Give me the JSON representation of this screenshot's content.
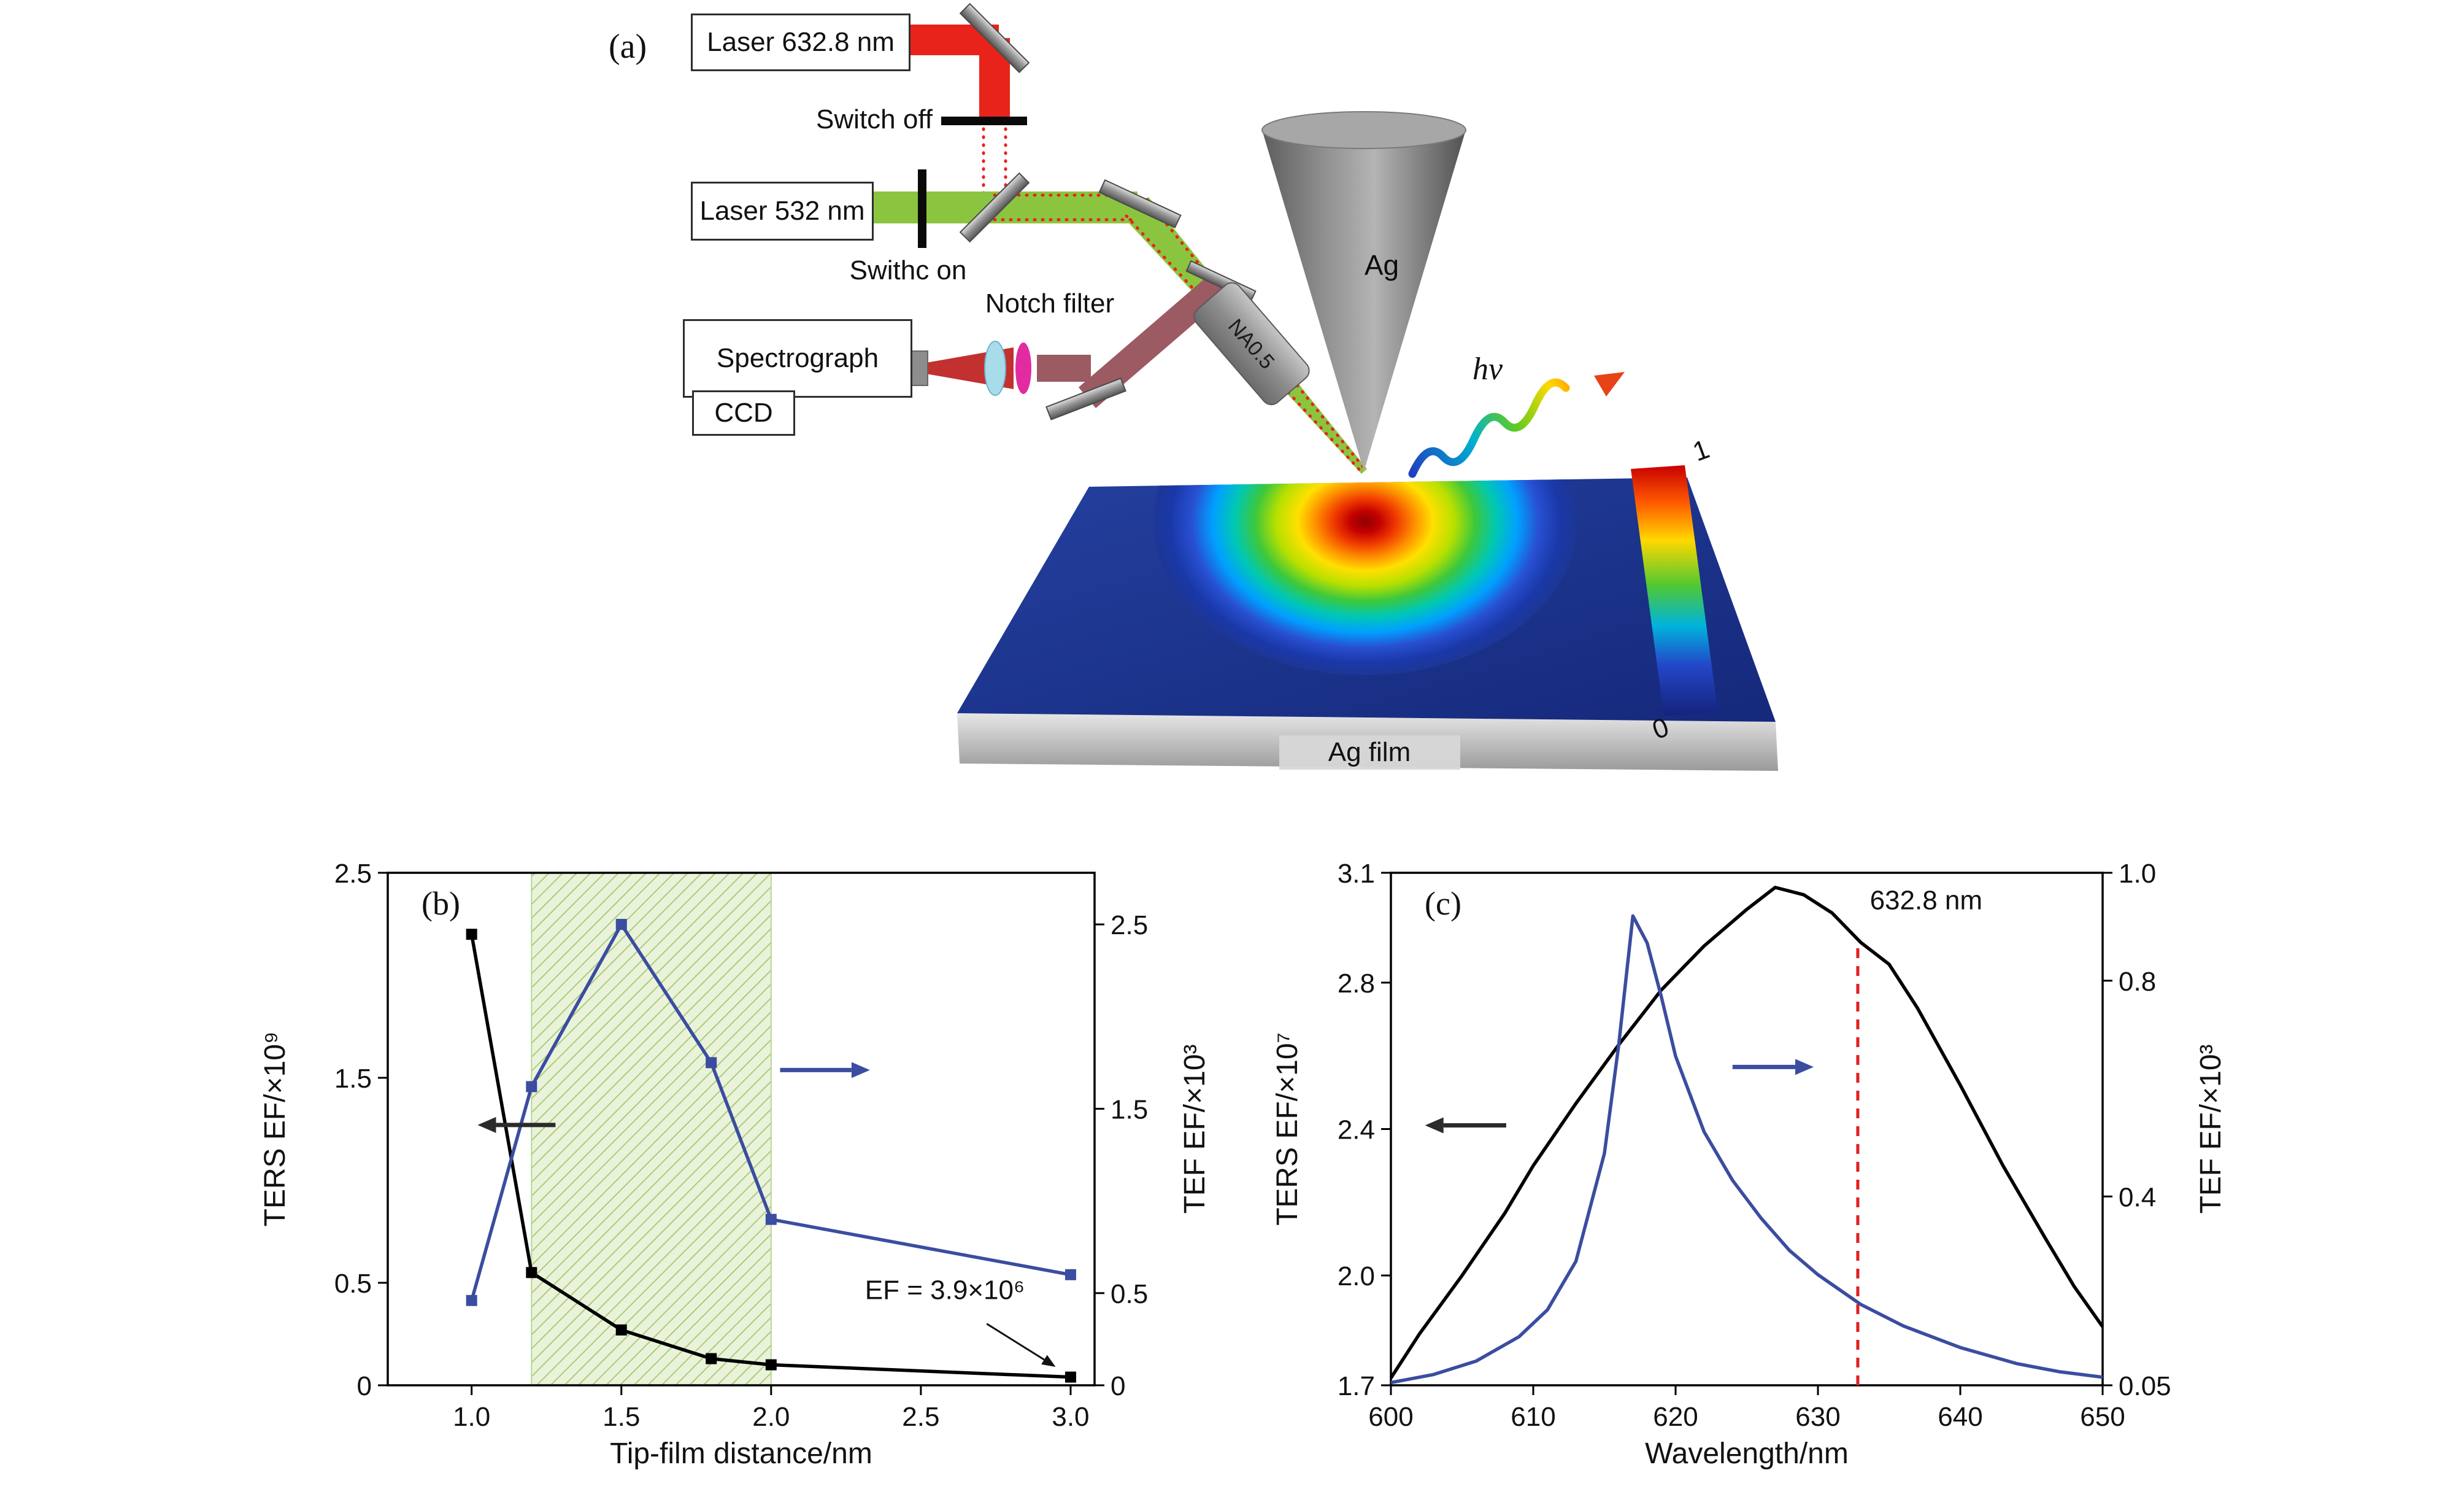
{
  "schematic": {
    "panel_label": "(a)",
    "laser_red_label": "Laser 632.8 nm",
    "switch_off_label": "Switch off",
    "laser_green_label": "Laser 532 nm",
    "switch_on_label": "Swithc on",
    "notch_filter_label": "Notch filter",
    "spectrograph_label": "Spectrograph",
    "ccd_label": "CCD",
    "objective_label": "NA0.5",
    "tip_label": "Ag",
    "photon_label": "hv",
    "film_label": "Ag film",
    "colorbar_max_label": "1",
    "colorbar_min_label": "0",
    "colors": {
      "laser_red_beam": "#e8231a",
      "laser_green_beam": "#8bc53f",
      "signal_beam": "#9c5a63",
      "surface_base": "#1d3796"
    }
  },
  "chart_data": [
    {
      "type": "line",
      "panel_label": "(b)",
      "xlabel": "Tip-film distance/nm",
      "ylabel_left": "TERS EF/×10⁹",
      "ylabel_right": "TEF EF/×10³",
      "xlim": [
        0.72,
        3.08
      ],
      "xticks": {
        "values": [
          1.0,
          1.5,
          2.0,
          2.5,
          3.0
        ],
        "labels": [
          "1.0",
          "1.5",
          "2.0",
          "2.5",
          "3.0"
        ]
      },
      "ylim_left": [
        0,
        2.5
      ],
      "yticks_left": {
        "values": [
          0,
          0.5,
          1.5,
          2.5
        ],
        "labels": [
          "0",
          "0.5",
          "1.5",
          "2.5"
        ]
      },
      "ylim_right": [
        0,
        2.78
      ],
      "yticks_right": {
        "values": [
          0,
          0.5,
          1.5,
          2.5
        ],
        "labels": [
          "0",
          "0.5",
          "1.5",
          "2.5"
        ]
      },
      "band": {
        "x0": 1.2,
        "x1": 2.0,
        "fill": "#eaf3da",
        "hatch": "#a8cd7d",
        "edge": "#b9d695"
      },
      "series": [
        {
          "name": "TERS EF (left axis)",
          "axis": "left",
          "color": "#000000",
          "marker": "square",
          "x": [
            1.0,
            1.2,
            1.5,
            1.8,
            2.0,
            3.0
          ],
          "y": [
            2.2,
            0.55,
            0.27,
            0.13,
            0.1,
            0.04
          ]
        },
        {
          "name": "TEF EF (right axis)",
          "axis": "right",
          "color": "#3b4da0",
          "marker": "square",
          "x": [
            1.0,
            1.2,
            1.5,
            1.8,
            2.0,
            3.0
          ],
          "y": [
            0.46,
            1.62,
            2.5,
            1.75,
            0.9,
            0.6
          ]
        }
      ],
      "arrows": [
        {
          "axis": "left",
          "color": "#2b2b2b",
          "x1": 1.28,
          "y1": 1.27,
          "x2": 1.02,
          "y2": 1.27
        },
        {
          "axis": "right",
          "color": "#3b4da0",
          "x1": 2.03,
          "y1": 1.71,
          "x2": 2.33,
          "y2": 1.71
        }
      ],
      "annotation": {
        "text": "EF = 3.9×10⁶",
        "x": 2.58,
        "y": 0.42,
        "arrow": {
          "x1": 2.72,
          "y1": 0.3,
          "x2": 2.95,
          "y2": 0.09
        }
      }
    },
    {
      "type": "line",
      "panel_label": "(c)",
      "xlabel": "Wavelength/nm",
      "ylabel_left": "TERS EF/×10⁷",
      "ylabel_right": "TEF EF/×10³",
      "xlim": [
        600,
        650
      ],
      "xticks": {
        "values": [
          600,
          610,
          620,
          630,
          640,
          650
        ],
        "labels": [
          "600",
          "610",
          "620",
          "630",
          "640",
          "650"
        ]
      },
      "ylim_left": [
        1.7,
        3.1
      ],
      "yticks_left": {
        "values": [
          1.7,
          2.0,
          2.4,
          2.8,
          3.1
        ],
        "labels": [
          "1.7",
          "2.0",
          "2.4",
          "2.8",
          "3.1"
        ]
      },
      "ylim_right": [
        0.05,
        1.0
      ],
      "yticks_right": {
        "values": [
          0.05,
          0.4,
          0.8,
          1.0
        ],
        "labels": [
          "0.05",
          "0.4",
          "0.8",
          "1.0"
        ]
      },
      "series": [
        {
          "name": "TERS EF (left axis)",
          "axis": "left",
          "color": "#000000",
          "marker": "none",
          "x": [
            600,
            602,
            605,
            608,
            610,
            613,
            616,
            619,
            622,
            625,
            627,
            629,
            631,
            633,
            635,
            637,
            640,
            643,
            646,
            648,
            650
          ],
          "y": [
            1.72,
            1.84,
            2.0,
            2.17,
            2.3,
            2.47,
            2.63,
            2.78,
            2.9,
            3.0,
            3.06,
            3.04,
            2.99,
            2.91,
            2.85,
            2.73,
            2.52,
            2.3,
            2.1,
            1.97,
            1.86
          ]
        },
        {
          "name": "TEF EF (right axis)",
          "axis": "right",
          "color": "#3b4da0",
          "marker": "none",
          "x": [
            600,
            603,
            606,
            609,
            611,
            613,
            615,
            616,
            617,
            618,
            619,
            620,
            622,
            624,
            626,
            628,
            630,
            633,
            636,
            640,
            644,
            647,
            650
          ],
          "y": [
            0.055,
            0.07,
            0.095,
            0.14,
            0.19,
            0.28,
            0.48,
            0.68,
            0.92,
            0.87,
            0.77,
            0.66,
            0.52,
            0.43,
            0.36,
            0.3,
            0.255,
            0.2,
            0.16,
            0.12,
            0.09,
            0.075,
            0.065
          ]
        }
      ],
      "arrows": [
        {
          "axis": "left",
          "color": "#2b2b2b",
          "x1": 608.1,
          "y1": 2.41,
          "x2": 602.4,
          "y2": 2.41
        },
        {
          "axis": "right",
          "color": "#3b4da0",
          "x1": 624.0,
          "y1": 0.64,
          "x2": 629.7,
          "y2": 0.64
        }
      ],
      "vline": {
        "x": 632.8,
        "y_top": 2.91,
        "color": "#e02020",
        "label": "632.8 nm",
        "label_x": 637.6,
        "label_y": 3.0
      }
    }
  ]
}
